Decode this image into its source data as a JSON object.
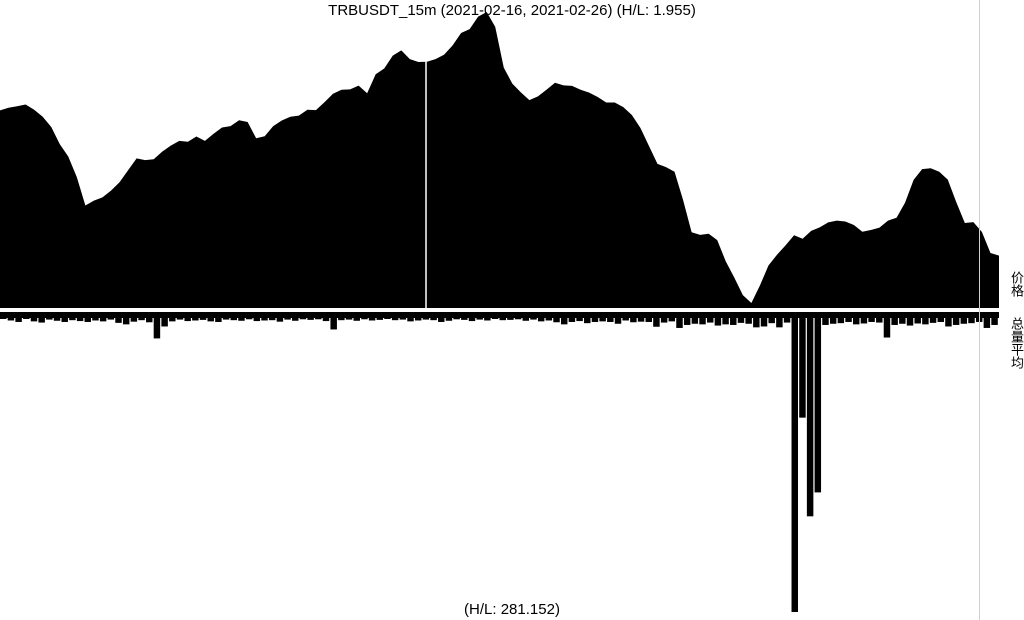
{
  "header": {
    "title": "TRBUSDT_15m (2021-02-16, 2021-02-26) (H/L: 1.955)"
  },
  "footer": {
    "volume_hl": "(H/L: 281.152)"
  },
  "side_labels": {
    "price": "价格",
    "volume": "总量平均"
  },
  "colors": {
    "bars": "#000000",
    "background": "#ffffff",
    "separator": "#ffffff",
    "right_border": "#d0d0d0"
  },
  "chart_data": [
    {
      "type": "area",
      "title": "TRBUSDT_15m (2021-02-16, 2021-02-26) (H/L: 1.955)",
      "xlabel": "",
      "ylabel": "价格",
      "x_range": [
        "2021-02-16",
        "2021-02-26"
      ],
      "hl_ratio": 1.955,
      "grid": false,
      "series": [
        {
          "name": "价格",
          "values": [
            0.662,
            0.671,
            0.676,
            0.682,
            0.664,
            0.64,
            0.605,
            0.546,
            0.503,
            0.432,
            0.335,
            0.352,
            0.363,
            0.386,
            0.415,
            0.456,
            0.497,
            0.491,
            0.494,
            0.52,
            0.541,
            0.557,
            0.554,
            0.572,
            0.557,
            0.581,
            0.603,
            0.608,
            0.628,
            0.622,
            0.566,
            0.573,
            0.608,
            0.627,
            0.64,
            0.644,
            0.664,
            0.663,
            0.69,
            0.719,
            0.733,
            0.734,
            0.747,
            0.721,
            0.786,
            0.806,
            0.85,
            0.868,
            0.838,
            0.828,
            0.829,
            0.838,
            0.853,
            0.885,
            0.928,
            0.941,
            0.984,
            1.0,
            0.949,
            0.809,
            0.754,
            0.724,
            0.697,
            0.71,
            0.733,
            0.757,
            0.748,
            0.746,
            0.733,
            0.723,
            0.708,
            0.689,
            0.689,
            0.673,
            0.646,
            0.602,
            0.54,
            0.478,
            0.467,
            0.451,
            0.354,
            0.243,
            0.234,
            0.238,
            0.216,
            0.143,
            0.087,
            0.027,
            0.0,
            0.06,
            0.129,
            0.166,
            0.198,
            0.233,
            0.221,
            0.248,
            0.26,
            0.277,
            0.283,
            0.28,
            0.268,
            0.245,
            0.251,
            0.259,
            0.283,
            0.293,
            0.345,
            0.423,
            0.46,
            0.463,
            0.451,
            0.424,
            0.346,
            0.275,
            0.278,
            0.244,
            0.172,
            0.163
          ]
        }
      ]
    },
    {
      "type": "bar",
      "title": "(H/L: 281.152)",
      "xlabel": "",
      "ylabel": "总量平均",
      "hl_ratio": 281.152,
      "note": "volume bars drawn downward from the separator",
      "series": [
        {
          "name": "总量平均",
          "values": [
            0.02,
            0.025,
            0.03,
            0.02,
            0.028,
            0.032,
            0.022,
            0.026,
            0.03,
            0.024,
            0.027,
            0.03,
            0.025,
            0.028,
            0.022,
            0.033,
            0.038,
            0.029,
            0.024,
            0.031,
            0.085,
            0.045,
            0.028,
            0.022,
            0.027,
            0.025,
            0.023,
            0.028,
            0.03,
            0.022,
            0.024,
            0.026,
            0.021,
            0.027,
            0.025,
            0.024,
            0.029,
            0.022,
            0.026,
            0.021,
            0.023,
            0.021,
            0.027,
            0.055,
            0.024,
            0.022,
            0.026,
            0.021,
            0.025,
            0.023,
            0.02,
            0.024,
            0.022,
            0.028,
            0.025,
            0.022,
            0.024,
            0.03,
            0.026,
            0.021,
            0.023,
            0.027,
            0.022,
            0.025,
            0.02,
            0.024,
            0.023,
            0.021,
            0.026,
            0.022,
            0.028,
            0.025,
            0.031,
            0.038,
            0.03,
            0.027,
            0.034,
            0.03,
            0.028,
            0.03,
            0.036,
            0.025,
            0.031,
            0.029,
            0.03,
            0.046,
            0.032,
            0.028,
            0.05,
            0.04,
            0.036,
            0.038,
            0.032,
            0.042,
            0.038,
            0.04,
            0.033,
            0.036,
            0.048,
            0.045,
            0.034,
            0.048,
            0.032,
            1.0,
            0.35,
            0.68,
            0.6,
            0.04,
            0.036,
            0.034,
            0.03,
            0.038,
            0.035,
            0.03,
            0.032,
            0.082,
            0.04,
            0.036,
            0.042,
            0.035,
            0.038,
            0.033,
            0.03,
            0.045,
            0.04,
            0.036,
            0.034,
            0.03,
            0.05,
            0.04
          ]
        }
      ]
    }
  ]
}
